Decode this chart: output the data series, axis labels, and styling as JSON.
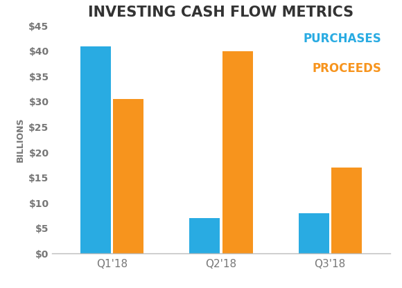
{
  "title": "INVESTING CASH FLOW METRICS",
  "categories": [
    "Q1'18",
    "Q2'18",
    "Q3'18"
  ],
  "purchases": [
    41,
    7,
    8
  ],
  "proceeds": [
    30.5,
    40,
    17
  ],
  "purchases_color": "#29ABE2",
  "proceeds_color": "#F7941D",
  "ylabel": "BILLIONS",
  "ylim": [
    0,
    45
  ],
  "yticks": [
    0,
    5,
    10,
    15,
    20,
    25,
    30,
    35,
    40,
    45
  ],
  "ytick_labels": [
    "$0",
    "$5",
    "$10",
    "$15",
    "$20",
    "$25",
    "$30",
    "$35",
    "$40",
    "$45"
  ],
  "legend_purchases": "PURCHASES",
  "legend_proceeds": "PROCEEDS",
  "bar_width": 0.28,
  "background_color": "#ffffff",
  "title_fontsize": 15,
  "axis_label_fontsize": 9,
  "tick_fontsize": 10,
  "legend_fontsize": 12,
  "tick_color": "#777777",
  "title_color": "#333333"
}
